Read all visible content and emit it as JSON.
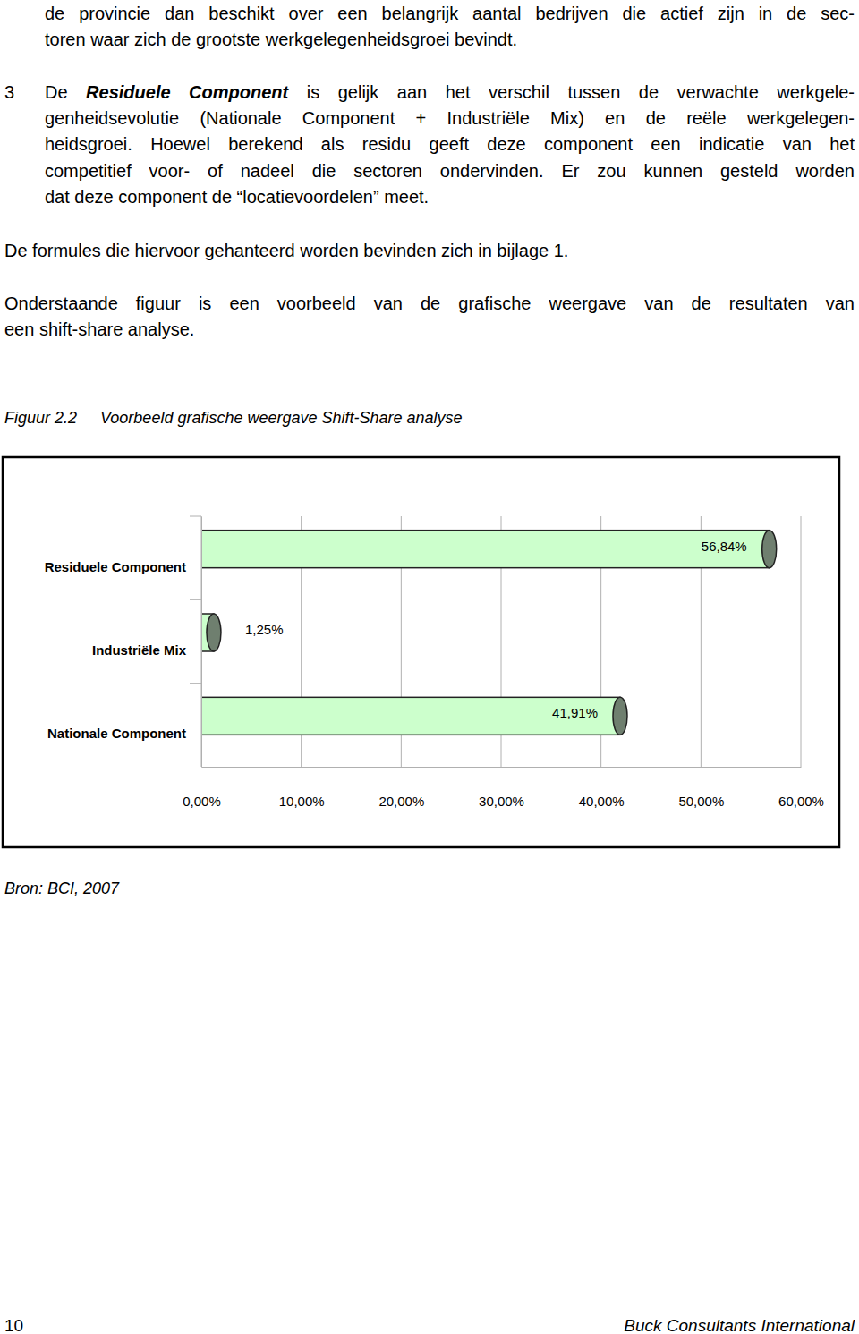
{
  "document": {
    "paragraphs": [
      {
        "lines": [
          "de provincie dan beschikt over een belangrijk aantal bedrijven die actief zijn in de sec-",
          "toren waar zich de grootste werkgelegenheidsgroei bevindt."
        ]
      },
      {
        "marker": "3",
        "lines": [
          [
            {
              "text": "De "
            },
            {
              "text": "Residuele Component",
              "strong": true
            },
            {
              "text": " is gelijk aan het verschil tussen de verwachte werkgele-"
            }
          ],
          "genheidsevolutie (Nationale Component + Industriële Mix) en de reële werkgelegen-",
          "heidsgroei. Hoewel berekend als residu geeft deze component een indicatie van het",
          "competitief voor- of nadeel die sectoren ondervinden. Er zou kunnen gesteld worden",
          "dat deze component de “locatievoordelen” meet."
        ]
      },
      {
        "lines": [
          "De formules die hiervoor gehanteerd worden bevinden zich in bijlage 1."
        ]
      },
      {
        "lines": [
          "Onderstaande figuur is een voorbeeld van de grafische weergave van de resultaten van",
          "een shift-share analyse."
        ]
      }
    ],
    "figure": {
      "number": "Figuur 2.2",
      "caption": "Voorbeeld grafische weergave Shift-Share analyse"
    },
    "source": "Bron: BCI, 2007",
    "footer": {
      "page": "10",
      "publisher": "Buck Consultants International"
    }
  },
  "chart_data": {
    "type": "bar",
    "orientation": "horizontal",
    "categories": [
      "Residuele Component",
      "Industriële Mix",
      "Nationale Component"
    ],
    "values": [
      56.84,
      1.25,
      41.91
    ],
    "value_labels": [
      "56,84%",
      "1,25%",
      "41,91%"
    ],
    "data_labels": true,
    "color": "#ccffcc",
    "xlim": [
      0,
      60
    ],
    "xticks": [
      {
        "value": 0,
        "label": "0,00%"
      },
      {
        "value": 10,
        "label": "10,00%"
      },
      {
        "value": 20,
        "label": "20,00%"
      },
      {
        "value": 30,
        "label": "30,00%"
      },
      {
        "value": 40,
        "label": "40,00%"
      },
      {
        "value": 50,
        "label": "50,00%"
      },
      {
        "value": 60,
        "label": "60,00%"
      }
    ],
    "grid": true
  }
}
